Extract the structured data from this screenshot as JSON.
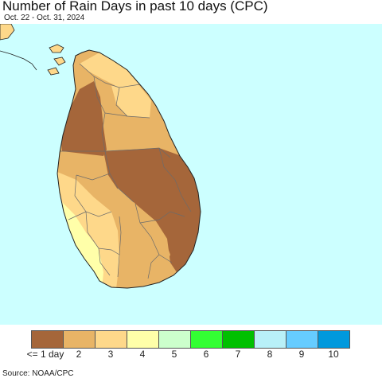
{
  "map": {
    "title": "Number of Rain Days in past 10 days (CPC)",
    "date_range": "Oct. 22 - Oct. 31, 2024",
    "source": "Source: NOAA/CPC",
    "ocean_color": "#ccffff",
    "land_color": "#e8b466"
  },
  "legend": {
    "swatches": [
      {
        "label": "<= 1 day",
        "color": "#a5663a"
      },
      {
        "label": "2",
        "color": "#e8b466"
      },
      {
        "label": "3",
        "color": "#fed88a"
      },
      {
        "label": "4",
        "color": "#ffffa9"
      },
      {
        "label": "5",
        "color": "#ccffcc"
      },
      {
        "label": "6",
        "color": "#33ff33"
      },
      {
        "label": "7",
        "color": "#00c000"
      },
      {
        "label": "8",
        "color": "#b8f0f8"
      },
      {
        "label": "9",
        "color": "#66ccff"
      },
      {
        "label": "10",
        "color": "#0099dd"
      }
    ]
  }
}
